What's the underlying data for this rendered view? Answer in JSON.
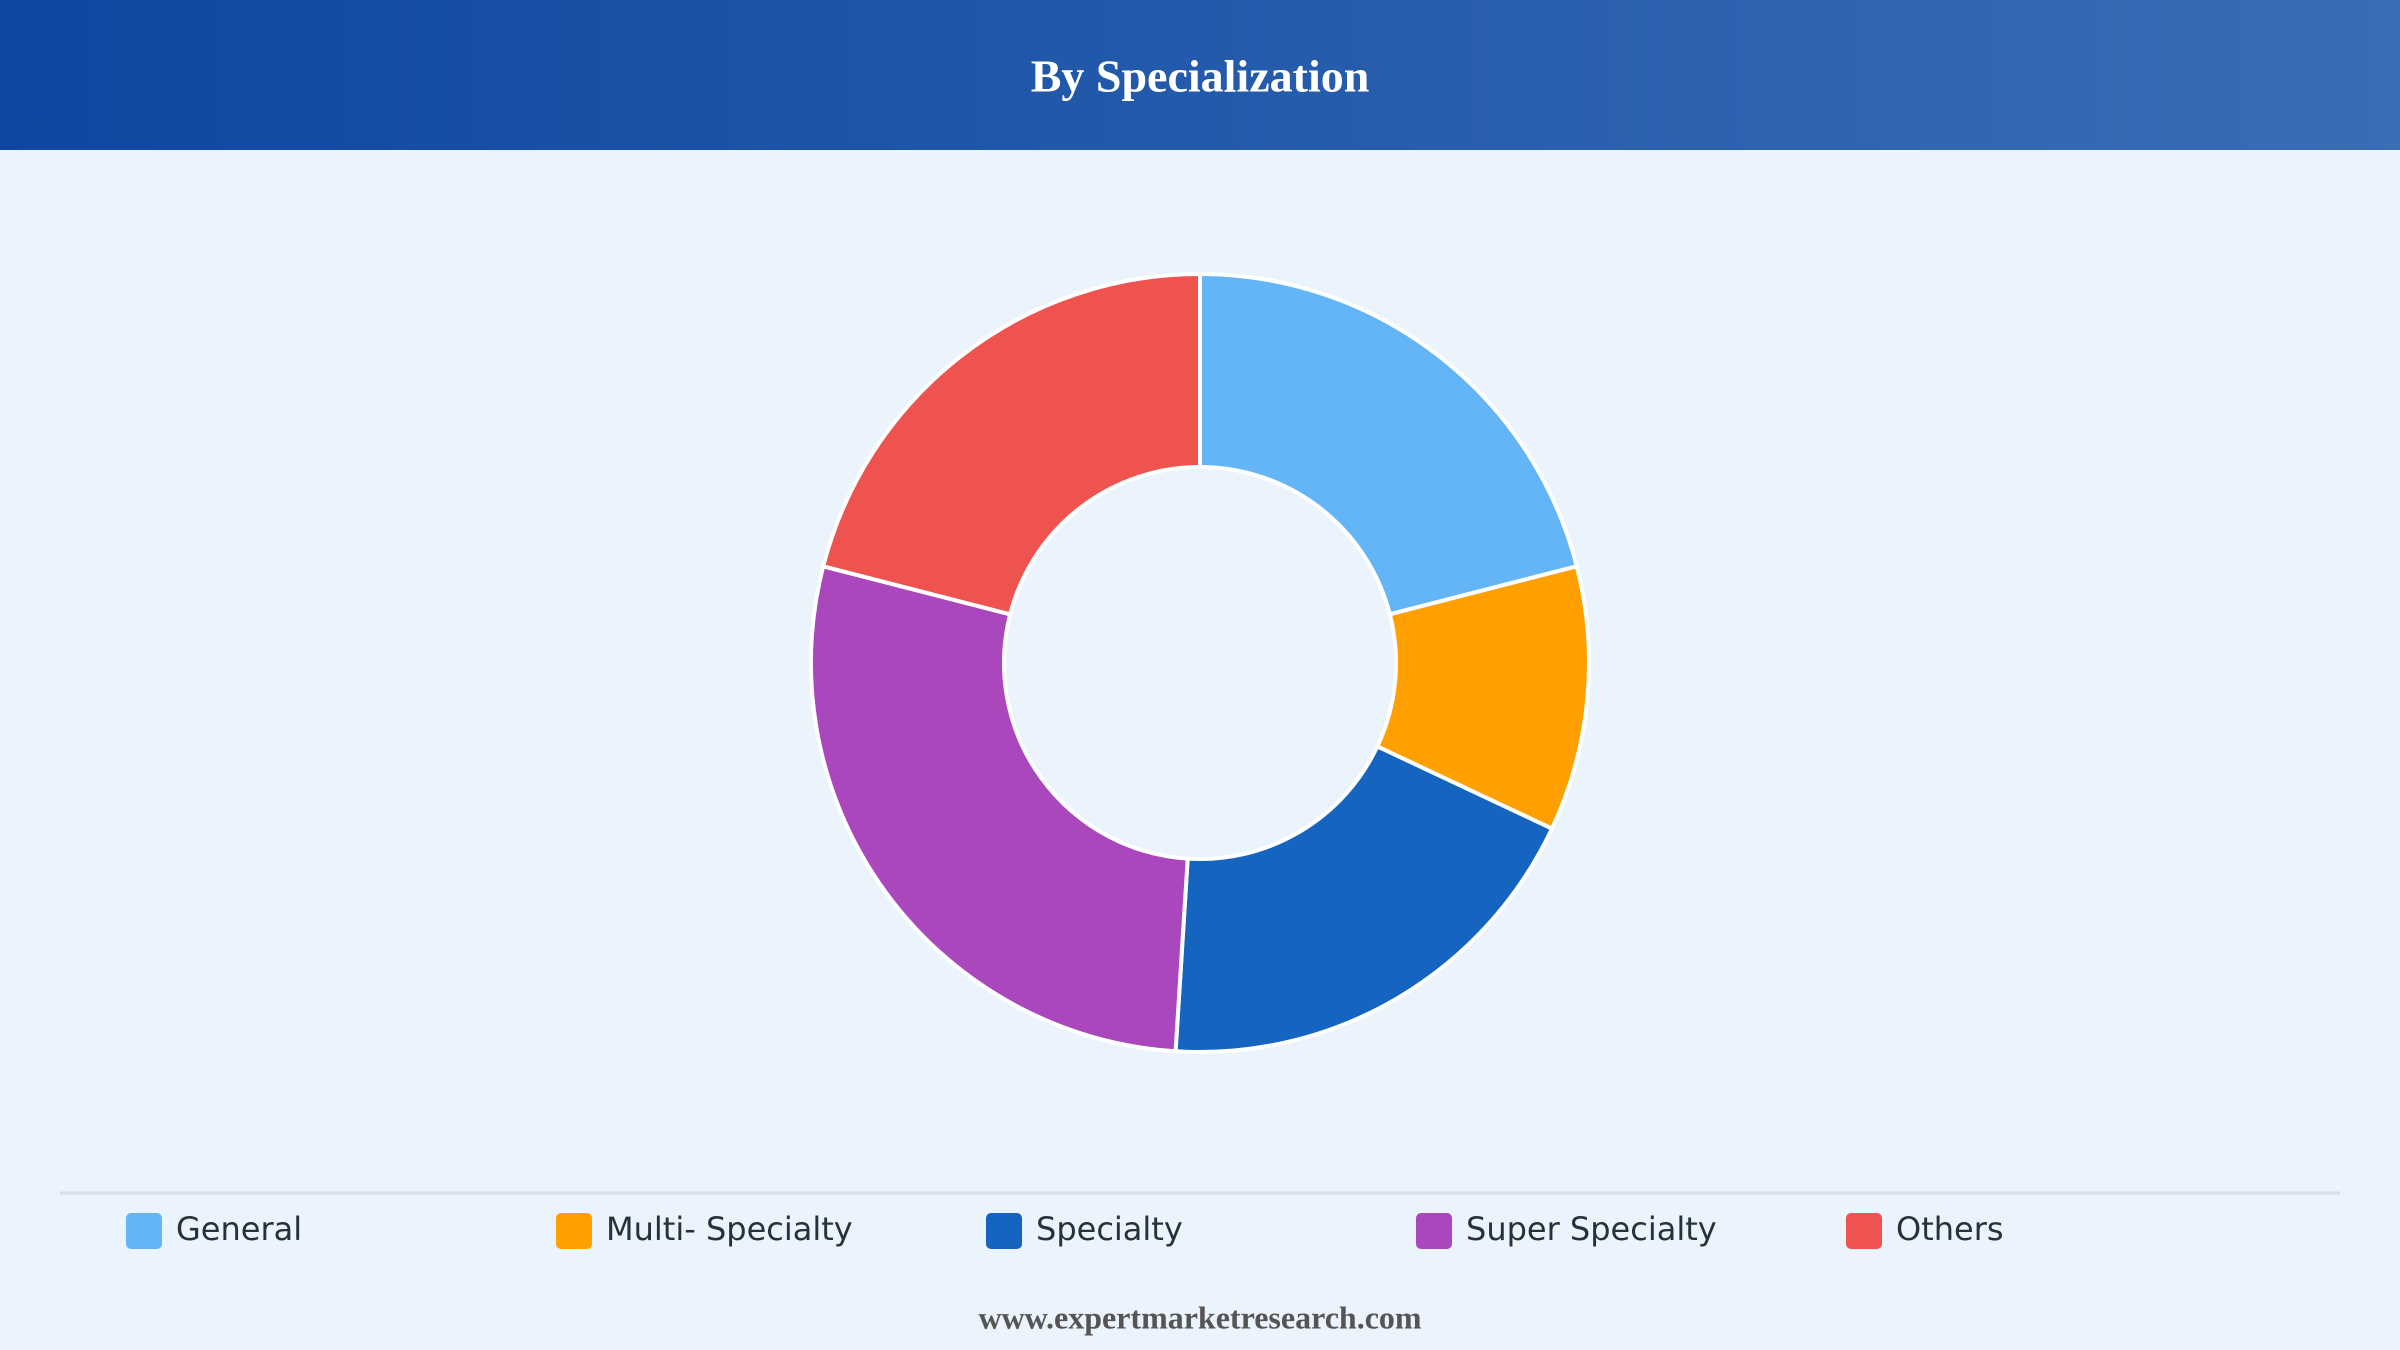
{
  "chart_data": {
    "type": "donut",
    "title": "By Specialization",
    "categories": [
      "General",
      "Multi- Specialty",
      "Specialty",
      "Super Specialty",
      "Others"
    ],
    "values": [
      21,
      11,
      19,
      28,
      21
    ],
    "colors": [
      "#64b5f6",
      "#ffa000",
      "#1565c0",
      "#ab47bc",
      "#ef5350"
    ],
    "legend": "bottom"
  },
  "footer": "www.expertmarketresearch.com"
}
